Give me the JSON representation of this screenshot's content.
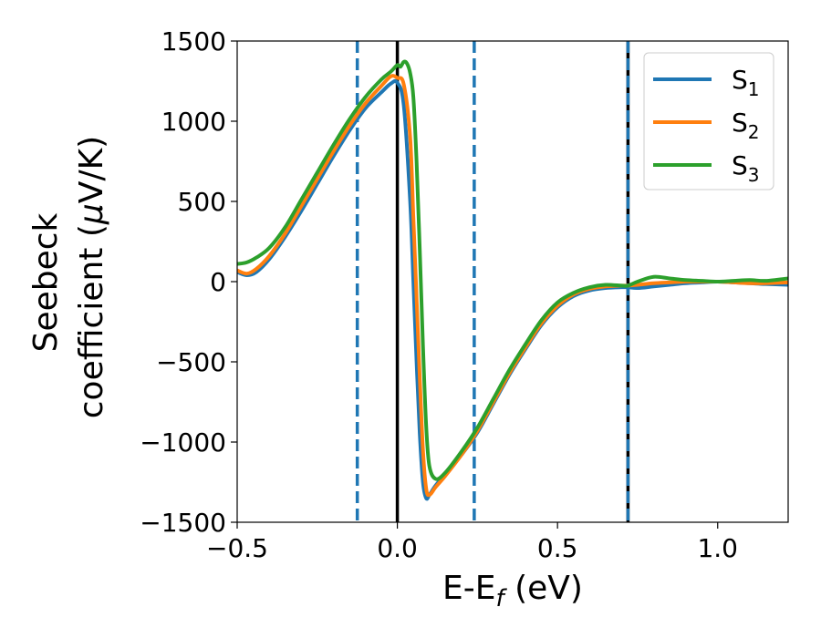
{
  "chart_data": {
    "type": "line",
    "xlabel": "E-E",
    "xlabel_sub": "f",
    "xlabel_unit": " (eV)",
    "ylabel_line1": "Seebeck",
    "ylabel_line2_text": "coefficient  (",
    "ylabel_mu": "μ",
    "ylabel_unit_end": "V/K)",
    "xlim": [
      -0.5,
      1.22
    ],
    "ylim": [
      -1500,
      1500
    ],
    "xticks": [
      -0.5,
      0.0,
      0.5,
      1.0
    ],
    "xtick_labels": [
      "−0.5",
      "0.0",
      "0.5",
      "1.0"
    ],
    "yticks": [
      -1500,
      -1000,
      -500,
      0,
      500,
      1000,
      1500
    ],
    "ytick_labels": [
      "−1500",
      "−1000",
      "−500",
      "0",
      "500",
      "1000",
      "1500"
    ],
    "grid": false,
    "legend_position": "top-right",
    "vlines": [
      {
        "x": -0.125,
        "style": "dashed",
        "color": "#1f77b4"
      },
      {
        "x": 0.0,
        "style": "solid",
        "color": "#000000"
      },
      {
        "x": 0.24,
        "style": "dashed",
        "color": "#1f77b4"
      },
      {
        "x": 0.72,
        "style": "solid",
        "color": "#000000"
      },
      {
        "x": 0.72,
        "style": "dashed",
        "color": "#1f77b4"
      }
    ],
    "series": [
      {
        "name": "S",
        "sub": "1",
        "color": "#1f77b4",
        "x": [
          -0.5,
          -0.47,
          -0.44,
          -0.4,
          -0.35,
          -0.3,
          -0.25,
          -0.2,
          -0.15,
          -0.1,
          -0.05,
          -0.02,
          0.0,
          0.02,
          0.04,
          0.05,
          0.06,
          0.07,
          0.08,
          0.09,
          0.1,
          0.12,
          0.15,
          0.2,
          0.25,
          0.3,
          0.35,
          0.4,
          0.45,
          0.5,
          0.55,
          0.6,
          0.65,
          0.7,
          0.72,
          0.75,
          0.8,
          0.85,
          0.9,
          0.95,
          1.0,
          1.05,
          1.1,
          1.15,
          1.22
        ],
        "y": [
          60,
          40,
          60,
          140,
          280,
          440,
          610,
          780,
          940,
          1080,
          1180,
          1235,
          1240,
          1100,
          500,
          0,
          -500,
          -950,
          -1250,
          -1350,
          -1330,
          -1270,
          -1200,
          -1080,
          -940,
          -760,
          -580,
          -420,
          -270,
          -160,
          -90,
          -55,
          -40,
          -35,
          -35,
          -40,
          -30,
          -20,
          -10,
          -5,
          0,
          -5,
          -10,
          -15,
          -20
        ]
      },
      {
        "name": "S",
        "sub": "2",
        "color": "#ff7f0e",
        "x": [
          -0.5,
          -0.47,
          -0.44,
          -0.4,
          -0.35,
          -0.3,
          -0.25,
          -0.2,
          -0.15,
          -0.1,
          -0.05,
          -0.02,
          0.0,
          0.02,
          0.04,
          0.05,
          0.06,
          0.07,
          0.08,
          0.09,
          0.1,
          0.12,
          0.15,
          0.2,
          0.25,
          0.3,
          0.35,
          0.4,
          0.45,
          0.5,
          0.55,
          0.6,
          0.65,
          0.7,
          0.72,
          0.75,
          0.8,
          0.85,
          0.9,
          0.95,
          1.0,
          1.05,
          1.1,
          1.15,
          1.22
        ],
        "y": [
          70,
          50,
          80,
          160,
          300,
          470,
          640,
          810,
          970,
          1110,
          1220,
          1280,
          1270,
          1230,
          900,
          400,
          -100,
          -600,
          -1050,
          -1290,
          -1330,
          -1280,
          -1210,
          -1080,
          -930,
          -750,
          -570,
          -410,
          -260,
          -150,
          -80,
          -45,
          -30,
          -25,
          -25,
          -20,
          -10,
          -5,
          0,
          0,
          0,
          -5,
          -10,
          -10,
          -5
        ]
      },
      {
        "name": "S",
        "sub": "3",
        "color": "#2ca02c",
        "x": [
          -0.5,
          -0.47,
          -0.44,
          -0.4,
          -0.35,
          -0.3,
          -0.25,
          -0.2,
          -0.15,
          -0.1,
          -0.05,
          -0.02,
          0.0,
          0.01,
          0.02,
          0.03,
          0.04,
          0.05,
          0.06,
          0.07,
          0.08,
          0.09,
          0.1,
          0.12,
          0.15,
          0.2,
          0.25,
          0.3,
          0.35,
          0.4,
          0.45,
          0.5,
          0.55,
          0.6,
          0.65,
          0.7,
          0.72,
          0.75,
          0.8,
          0.85,
          0.9,
          0.95,
          1.0,
          1.05,
          1.1,
          1.15,
          1.22
        ],
        "y": [
          110,
          120,
          150,
          210,
          340,
          510,
          680,
          850,
          1010,
          1150,
          1260,
          1310,
          1350,
          1340,
          1370,
          1360,
          1300,
          1150,
          750,
          200,
          -400,
          -900,
          -1150,
          -1230,
          -1190,
          -1060,
          -910,
          -730,
          -550,
          -390,
          -240,
          -130,
          -70,
          -35,
          -20,
          -25,
          -25,
          0,
          30,
          20,
          10,
          5,
          0,
          5,
          10,
          5,
          20
        ]
      }
    ]
  }
}
